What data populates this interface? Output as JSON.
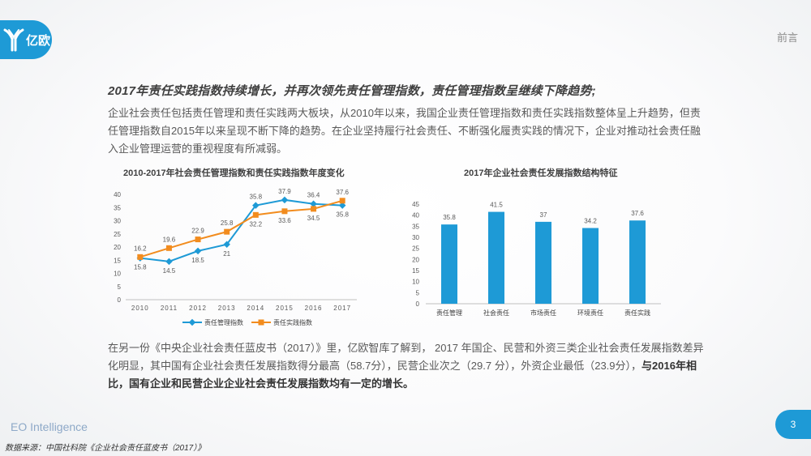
{
  "header": {
    "logo_text": "亿欧",
    "section": "前言"
  },
  "headline": "2017年责任实践指数持续增长，并再次领先责任管理指数，责任管理指数呈继续下降趋势;",
  "intro_paragraph": "企业社会责任包括责任管理和责任实践两大板块，从2010年以来，我国企业责任管理指数和责任实践指数整体呈上升趋势，但责任管理指数自2015年以来呈现不断下降的趋势。在企业坚持履行社会责任、不断强化履责实践的情况下，企业对推动社会责任融入企业管理运营的重视程度有所减弱。",
  "chart_data": [
    {
      "type": "line",
      "title": "2010-2017年社会责任管理指数和责任实践指数年度变化",
      "x": [
        "2010",
        "2011",
        "2012",
        "2013",
        "2014",
        "2015",
        "2016",
        "2017"
      ],
      "series": [
        {
          "name": "责任管理指数",
          "values": [
            15.8,
            14.5,
            18.5,
            21,
            35.8,
            37.9,
            36.4,
            35.8
          ],
          "color": "#1e9ad6"
        },
        {
          "name": "责任实践指数",
          "values": [
            16.2,
            19.6,
            22.9,
            25.8,
            32.2,
            33.6,
            34.5,
            37.6
          ],
          "color": "#f28c1e"
        }
      ],
      "y_ticks": [
        "0",
        "5",
        "10",
        "15",
        "20",
        "25",
        "30",
        "35",
        "40"
      ],
      "ylim": [
        0,
        40
      ],
      "legend_position": "bottom",
      "grid": false
    },
    {
      "type": "bar",
      "title": "2017年企业社会责任发展指数结构特征",
      "categories": [
        "责任管理",
        "社会责任",
        "市场责任",
        "环境责任",
        "责任实践"
      ],
      "values": [
        35.8,
        41.5,
        37,
        34.2,
        37.6
      ],
      "value_labels": [
        "35.8",
        "41.5",
        "37",
        "34.2",
        "37.6"
      ],
      "y_ticks": [
        "0",
        "5",
        "10",
        "15",
        "20",
        "25",
        "30",
        "35",
        "40",
        "45"
      ],
      "ylim": [
        0,
        45
      ],
      "color": "#1e9ad6",
      "grid": false
    }
  ],
  "closing_paragraph": {
    "normal": "在另一份《中央企业社会责任蓝皮书（2017）》里，亿欧智库了解到， 2017 年国企、民营和外资三类企业社会责任发展指数差异化明显，其中国有企业社会责任发展指数得分最高（58.7分），民营企业次之（29.7 分），外资企业最低（23.9分），",
    "bold": "与2016年相比，国有企业和民营企业企业社会责任发展指数均有一定的增长。"
  },
  "footer": {
    "brand": "EO Intelligence",
    "page_number": "3",
    "source": "数据来源：中国社科院《企业社会责任蓝皮书（2017）》"
  }
}
